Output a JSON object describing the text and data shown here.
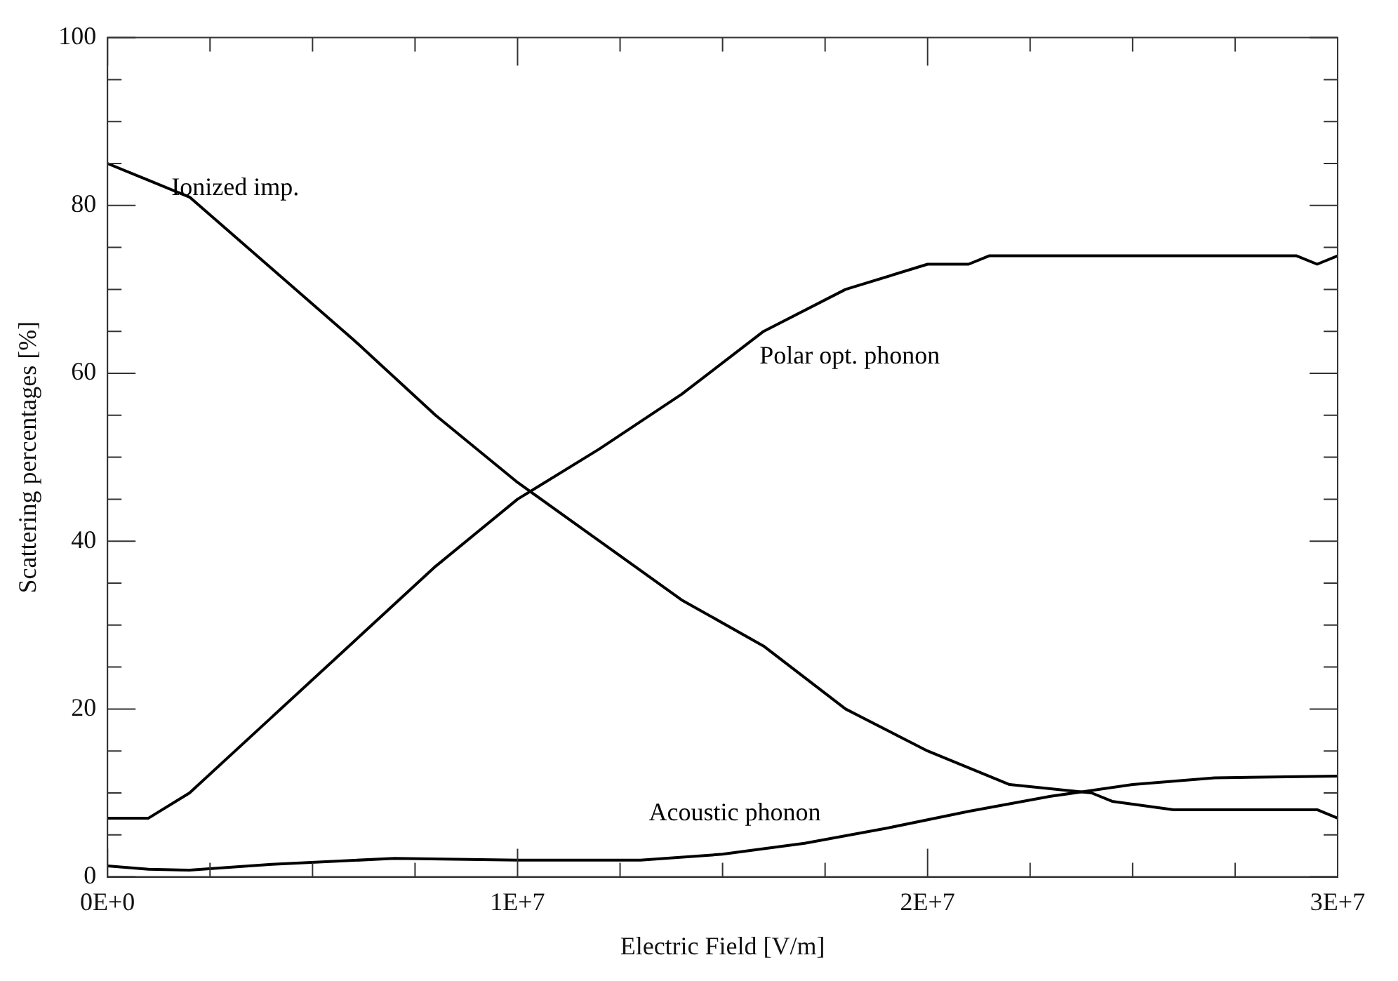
{
  "chart_data": {
    "type": "line",
    "xlabel": "Electric Field [V/m]",
    "ylabel": "Scattering percentages [%]",
    "xlim": [
      0,
      30000000
    ],
    "ylim": [
      0,
      100
    ],
    "xticks": [
      {
        "value": 0,
        "label": "0E+0"
      },
      {
        "value": 2500000,
        "label": null
      },
      {
        "value": 5000000,
        "label": null
      },
      {
        "value": 7500000,
        "label": null
      },
      {
        "value": 10000000,
        "label": "1E+7"
      },
      {
        "value": 12500000,
        "label": null
      },
      {
        "value": 15000000,
        "label": null
      },
      {
        "value": 17500000,
        "label": null
      },
      {
        "value": 20000000,
        "label": "2E+7"
      },
      {
        "value": 22500000,
        "label": null
      },
      {
        "value": 25000000,
        "label": null
      },
      {
        "value": 27500000,
        "label": null
      },
      {
        "value": 30000000,
        "label": "3E+7"
      }
    ],
    "yticks": [
      0,
      {
        "value": 5,
        "label": null
      },
      {
        "value": 10,
        "label": null
      },
      {
        "value": 15,
        "label": null
      },
      20,
      {
        "value": 25,
        "label": null
      },
      {
        "value": 30,
        "label": null
      },
      {
        "value": 35,
        "label": null
      },
      40,
      {
        "value": 45,
        "label": null
      },
      {
        "value": 50,
        "label": null
      },
      {
        "value": 55,
        "label": null
      },
      60,
      {
        "value": 65,
        "label": null
      },
      {
        "value": 70,
        "label": null
      },
      {
        "value": 75,
        "label": null
      },
      80,
      {
        "value": 85,
        "label": null
      },
      {
        "value": 90,
        "label": null
      },
      {
        "value": 95,
        "label": null
      },
      100
    ],
    "grid": false,
    "legend": false,
    "marker": "none",
    "line_style": "solid",
    "series": [
      {
        "name": "Ionized imp.",
        "color": "#000000",
        "x": [
          0,
          1000000,
          2000000,
          4000000,
          6000000,
          8000000,
          10000000,
          12000000,
          14000000,
          16000000,
          18000000,
          20000000,
          21000000,
          22000000,
          24000000,
          24500000,
          26000000,
          29500000,
          30000000
        ],
        "values": [
          85,
          83,
          81,
          72.5,
          64,
          55,
          47,
          40,
          33,
          27.5,
          20,
          15,
          13,
          11,
          10,
          9,
          8,
          8,
          7
        ]
      },
      {
        "name": "Polar opt. phonon",
        "color": "#000000",
        "x": [
          0,
          1000000,
          2000000,
          4000000,
          6000000,
          8000000,
          10000000,
          12000000,
          14000000,
          16000000,
          18000000,
          20000000,
          21000000,
          21500000,
          29000000,
          29500000,
          30000000
        ],
        "values": [
          7,
          7,
          10,
          19,
          28,
          37,
          45,
          51,
          57.5,
          65,
          70,
          73,
          73,
          74,
          74,
          73,
          74
        ]
      },
      {
        "name": "Acoustic phonon",
        "color": "#000000",
        "x": [
          0,
          1000000,
          2000000,
          4000000,
          7000000,
          10000000,
          13000000,
          15000000,
          17000000,
          19000000,
          21000000,
          23000000,
          25000000,
          27000000,
          30000000
        ],
        "values": [
          1.3,
          0.9,
          0.8,
          1.5,
          2.2,
          2,
          2,
          2.7,
          4,
          5.8,
          7.8,
          9.6,
          11,
          11.8,
          12
        ]
      }
    ]
  }
}
